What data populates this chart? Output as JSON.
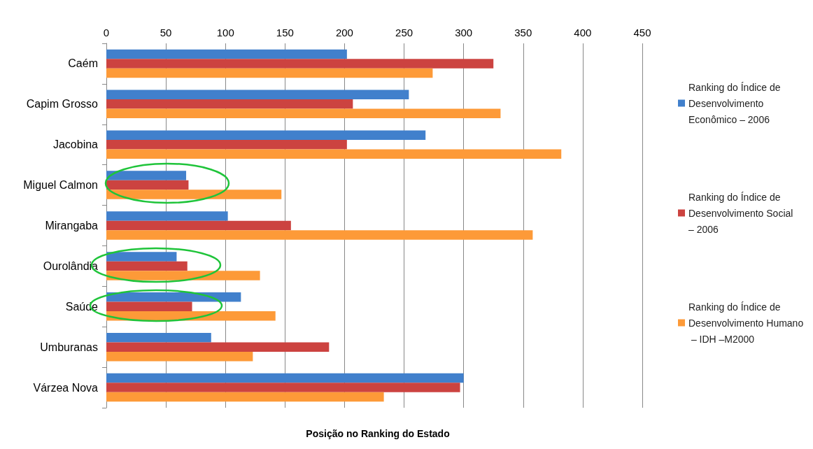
{
  "chart_data": {
    "type": "bar",
    "orientation": "horizontal",
    "xlabel": "Posição no Ranking do Estado",
    "categories": [
      "Caém",
      "Capim Grosso",
      "Jacobina",
      "Miguel Calmon",
      "Mirangaba",
      "Ourolândia",
      "Saúde",
      "Umburanas",
      "Várzea Nova"
    ],
    "series": [
      {
        "name": "Ranking do Índice de Desenvolvimento Econômico – 2006",
        "color": "#4180cc",
        "values": [
          202,
          254,
          268,
          67,
          102,
          59,
          113,
          88,
          300
        ]
      },
      {
        "name": "Ranking do Índice de Desenvolvimento Social – 2006",
        "color": "#cc4340",
        "values": [
          325,
          207,
          202,
          69,
          155,
          68,
          72,
          187,
          297
        ]
      },
      {
        "name": "Ranking do Índice de Desenvolvimento Humano – IDH –M2000",
        "color": "#fd9a38",
        "values": [
          274,
          331,
          382,
          147,
          358,
          129,
          142,
          123,
          233
        ]
      }
    ],
    "xlim": [
      0,
      450
    ],
    "xticks": [
      0,
      50,
      100,
      150,
      200,
      250,
      300,
      350,
      400,
      450
    ],
    "grid": "x",
    "legend": "right"
  }
}
